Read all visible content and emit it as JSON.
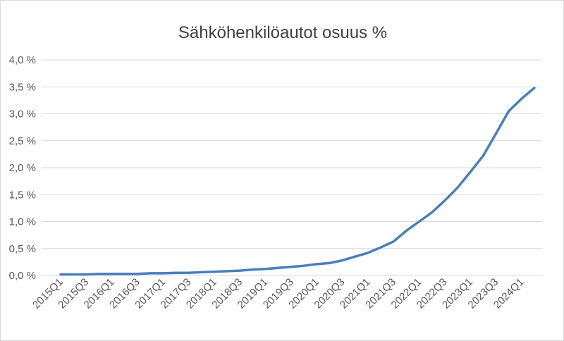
{
  "chart_data": {
    "type": "line",
    "title": "Sähköhenkilöautot osuus %",
    "xlabel": "",
    "ylabel": "",
    "ylim": [
      0,
      4.0
    ],
    "yticks": [
      0,
      0.5,
      1.0,
      1.5,
      2.0,
      2.5,
      3.0,
      3.5,
      4.0
    ],
    "ytick_labels": [
      "0,0 %",
      "0,5 %",
      "1,0 %",
      "1,5 %",
      "2,0 %",
      "2,5 %",
      "3,0 %",
      "3,5 %",
      "4,0 %"
    ],
    "grid": true,
    "legend": "none",
    "line_color": "#4a7ebb",
    "x": [
      "2015Q1",
      "2015Q2",
      "2015Q3",
      "2015Q4",
      "2016Q1",
      "2016Q2",
      "2016Q3",
      "2016Q4",
      "2017Q1",
      "2017Q2",
      "2017Q3",
      "2017Q4",
      "2018Q1",
      "2018Q2",
      "2018Q3",
      "2018Q4",
      "2019Q1",
      "2019Q2",
      "2019Q3",
      "2019Q4",
      "2020Q1",
      "2020Q2",
      "2020Q3",
      "2020Q4",
      "2021Q1",
      "2021Q2",
      "2021Q3",
      "2021Q4",
      "2022Q1",
      "2022Q2",
      "2022Q3",
      "2022Q4",
      "2023Q1",
      "2023Q2",
      "2023Q3",
      "2023Q4",
      "2024Q1",
      "2024Q2"
    ],
    "xtick_labels": [
      "2015Q1",
      "2015Q3",
      "2016Q1",
      "2016Q3",
      "2017Q1",
      "2017Q3",
      "2018Q1",
      "2018Q3",
      "2019Q1",
      "2019Q3",
      "2020Q1",
      "2020Q3",
      "2021Q1",
      "2021Q3",
      "2022Q1",
      "2022Q3",
      "2023Q1",
      "2023Q3",
      "2024Q1"
    ],
    "values": [
      0.02,
      0.02,
      0.02,
      0.03,
      0.03,
      0.03,
      0.03,
      0.04,
      0.04,
      0.05,
      0.05,
      0.06,
      0.07,
      0.08,
      0.09,
      0.11,
      0.12,
      0.14,
      0.16,
      0.18,
      0.21,
      0.23,
      0.28,
      0.35,
      0.42,
      0.52,
      0.63,
      0.83,
      1.0,
      1.17,
      1.39,
      1.63,
      1.92,
      2.22,
      2.63,
      3.05,
      3.28,
      3.48
    ]
  }
}
